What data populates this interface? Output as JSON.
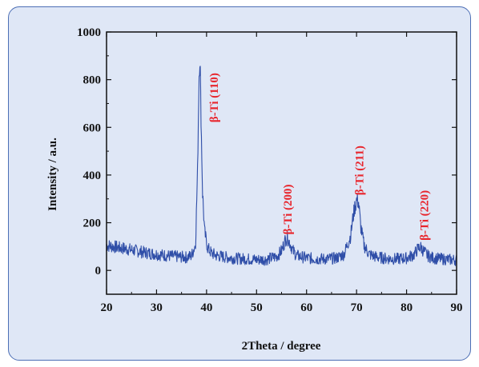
{
  "chart_data": {
    "type": "line",
    "title": "",
    "xlabel": "2Theta / degree",
    "ylabel": "Intensity / a.u.",
    "xlim": [
      20,
      90
    ],
    "ylim": [
      -100,
      1000
    ],
    "xticks": [
      20,
      30,
      40,
      50,
      60,
      70,
      80,
      90
    ],
    "yticks": [
      0,
      200,
      400,
      600,
      800,
      1000
    ],
    "grid": false,
    "legend": "none",
    "series": [
      {
        "name": "",
        "color": "#2f4ea8",
        "x": [
          20,
          22,
          24,
          26,
          28,
          30,
          32,
          34,
          36,
          37,
          37.8,
          38.2,
          38.5,
          38.7,
          38.9,
          39.2,
          39.6,
          40.2,
          41,
          42,
          44,
          46,
          48,
          50,
          52,
          54,
          55,
          55.7,
          56.1,
          56.6,
          57.3,
          58,
          60,
          62,
          64,
          66,
          67.5,
          68.8,
          69.5,
          70.1,
          70.4,
          70.8,
          71.5,
          72.5,
          74,
          76,
          78,
          80,
          81.5,
          82.3,
          82.8,
          83.3,
          84.2,
          85,
          86,
          88,
          90
        ],
        "y": [
          105,
          98,
          90,
          82,
          74,
          68,
          62,
          58,
          55,
          62,
          110,
          420,
          820,
          895,
          640,
          330,
          165,
          95,
          72,
          62,
          55,
          50,
          48,
          45,
          46,
          58,
          82,
          125,
          140,
          118,
          82,
          62,
          52,
          48,
          48,
          52,
          68,
          145,
          255,
          300,
          285,
          190,
          105,
          68,
          56,
          50,
          48,
          52,
          66,
          92,
          98,
          84,
          62,
          54,
          50,
          46,
          44
        ]
      }
    ],
    "annotations": [
      {
        "text": "β-Ti (110)",
        "x": 42.3,
        "y": 620
      },
      {
        "text": "β-Ti (200)",
        "x": 57.0,
        "y": 150
      },
      {
        "text": "β-Ti (211)",
        "x": 71.3,
        "y": 315
      },
      {
        "text": "β-Ti (220)",
        "x": 84.3,
        "y": 125
      }
    ]
  }
}
